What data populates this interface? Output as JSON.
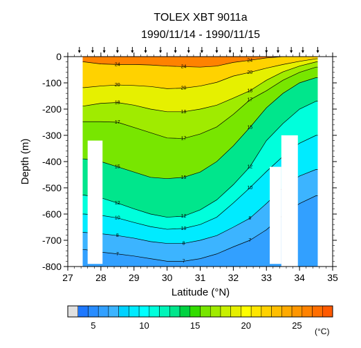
{
  "chart_data": {
    "type": "contour",
    "title": "TOLEX XBT 9011a",
    "subtitle": "1990/11/14 - 1990/11/15",
    "xlabel": "Latitude (°N)",
    "ylabel": "Depth (m)",
    "xlim": [
      27,
      35
    ],
    "ylim": [
      -800,
      0
    ],
    "x_ticks": [
      27,
      28,
      29,
      30,
      31,
      32,
      33,
      34,
      35
    ],
    "y_ticks": [
      0,
      -100,
      -200,
      -300,
      -400,
      -500,
      -600,
      -700,
      -800
    ],
    "x_tick_labels": [
      "27",
      "28",
      "29",
      "30",
      "31",
      "32",
      "33",
      "34",
      "35"
    ],
    "y_tick_labels": [
      "0",
      "-100",
      "-200",
      "-300",
      "-400",
      "-500",
      "-600",
      "-700",
      "-800"
    ],
    "contour_interval_c": 1,
    "contour_levels": [
      5,
      6,
      7,
      8,
      9,
      10,
      11,
      12,
      13,
      14,
      15,
      16,
      17,
      18,
      19,
      20,
      21,
      22,
      23,
      24,
      25
    ],
    "profile_latitudes": [
      27.35,
      27.75,
      28.1,
      28.5,
      28.95,
      29.35,
      29.8,
      30.25,
      30.65,
      31.05,
      31.5,
      31.9,
      32.25,
      32.6,
      33.0,
      33.35,
      33.75,
      34.1,
      34.55
    ],
    "isotherm_depths_m": {
      "latitudes": [
        27.5,
        28.0,
        28.5,
        29.0,
        29.5,
        30.0,
        30.5,
        31.0,
        31.5,
        32.0,
        32.5,
        33.0,
        33.5,
        34.0,
        34.5
      ],
      "isotherms": [
        {
          "temp_c": 24,
          "depth_m": [
            20,
            28,
            30,
            30,
            32,
            36,
            38,
            40,
            36,
            22,
            14,
            5,
            0,
            0,
            0
          ]
        },
        {
          "temp_c": 20,
          "depth_m": [
            118,
            112,
            108,
            110,
            114,
            122,
            120,
            112,
            98,
            74,
            60,
            44,
            30,
            18,
            8
          ]
        },
        {
          "temp_c": 18,
          "depth_m": [
            188,
            178,
            175,
            185,
            200,
            210,
            210,
            200,
            185,
            158,
            130,
            90,
            58,
            36,
            20
          ]
        },
        {
          "temp_c": 17,
          "depth_m": [
            248,
            248,
            250,
            270,
            290,
            310,
            312,
            295,
            268,
            220,
            165,
            130,
            90,
            60,
            40
          ]
        },
        {
          "temp_c": 15,
          "depth_m": [
            390,
            400,
            420,
            440,
            460,
            465,
            460,
            440,
            400,
            340,
            270,
            195,
            140,
            100,
            80
          ]
        },
        {
          "temp_c": 12,
          "depth_m": [
            528,
            538,
            558,
            580,
            600,
            612,
            608,
            584,
            546,
            488,
            420,
            320,
            255,
            200,
            170
          ]
        },
        {
          "temp_c": 10,
          "depth_m": [
            600,
            605,
            615,
            632,
            648,
            658,
            655,
            640,
            612,
            558,
            500,
            438,
            380,
            330,
            300
          ]
        },
        {
          "temp_c": 8,
          "depth_m": [
            670,
            675,
            682,
            692,
            705,
            712,
            712,
            700,
            682,
            650,
            616,
            560,
            500,
            455,
            430
          ]
        },
        {
          "temp_c": 7,
          "depth_m": [
            735,
            745,
            752,
            760,
            770,
            780,
            780,
            770,
            752,
            725,
            700,
            660,
            605,
            560,
            530
          ]
        }
      ]
    },
    "no_data_regions": [
      {
        "lat_range": [
          27.0,
          27.45
        ],
        "depth_range": [
          0,
          -800
        ]
      },
      {
        "lat_range": [
          27.6,
          28.05
        ],
        "depth_range": [
          -320,
          -790
        ]
      },
      {
        "lat_range": [
          33.1,
          33.45
        ],
        "depth_range": [
          -420,
          -790
        ]
      },
      {
        "lat_range": [
          33.45,
          33.95
        ],
        "depth_range": [
          -300,
          -800
        ]
      },
      {
        "lat_range": [
          34.55,
          35.0
        ],
        "depth_range": [
          0,
          -800
        ]
      }
    ],
    "colorbar": {
      "min_c": 3,
      "max_c": 28,
      "step_c": 1,
      "tick_values": [
        5,
        10,
        15,
        20,
        25
      ],
      "tick_labels": [
        "5",
        "10",
        "15",
        "20",
        "25"
      ],
      "units": "(°C)",
      "colors": [
        "#e0e0e0",
        "#1e78ff",
        "#288cff",
        "#32a0ff",
        "#3cb4ff",
        "#00d2ff",
        "#00ebff",
        "#00ffff",
        "#00ffdc",
        "#00f5b9",
        "#00e68c",
        "#00d241",
        "#32dc00",
        "#78e600",
        "#a0eb00",
        "#c8f000",
        "#e6f000",
        "#ffff00",
        "#ffe600",
        "#ffd200",
        "#ffbe00",
        "#ffaa00",
        "#ff9600",
        "#ff8200",
        "#ff6e00",
        "#ff5a00"
      ]
    },
    "grid": false
  }
}
